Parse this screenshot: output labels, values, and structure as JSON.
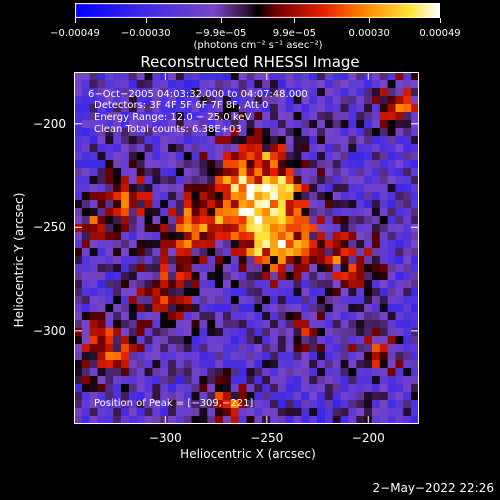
{
  "chart_data": {
    "type": "heatmap",
    "title": "Reconstructed RHESSI Image",
    "xlabel": "Heliocentric X (arcsec)",
    "ylabel": "Heliocentric Y (arcsec)",
    "xlim": [
      -345,
      -175
    ],
    "ylim": [
      -345,
      -175
    ],
    "xticks": [
      {
        "value": -300,
        "label": "−300"
      },
      {
        "value": -250,
        "label": "−250"
      },
      {
        "value": -200,
        "label": "−200"
      }
    ],
    "yticks": [
      {
        "value": -200,
        "label": "−200"
      },
      {
        "value": -250,
        "label": "−250"
      },
      {
        "value": -300,
        "label": "−300"
      }
    ],
    "colorbar": {
      "range": [
        -0.00049,
        0.00049
      ],
      "units": "(photons cm⁻² s⁻¹ asec⁻²)",
      "ticks": [
        {
          "value": -0.00049,
          "label": "−0.00049"
        },
        {
          "value": -0.0003,
          "label": "−0.00030"
        },
        {
          "value": -9.9e-05,
          "label": "−9.9e−05"
        },
        {
          "value": 9.9e-05,
          "label": "9.9e−05"
        },
        {
          "value": 0.0003,
          "label": "0.00030"
        },
        {
          "value": 0.00049,
          "label": "0.00049"
        }
      ]
    },
    "annotations": {
      "time_range": "6−Oct−2005 04:03:32.000 to 04:07:48.000",
      "detectors": "Detectors: 3F 4F 5F 6F 7F 8F, Att 0",
      "energy": "Energy Range: 12.0 − 25.0 keV",
      "clean": "Clean    Total counts: 6.38E+03",
      "peak": "Position of Peak = [−309,−221]"
    },
    "peak": {
      "x": -309,
      "y": -221
    }
  },
  "footer": {
    "date": "2−May−2022 22:26"
  }
}
